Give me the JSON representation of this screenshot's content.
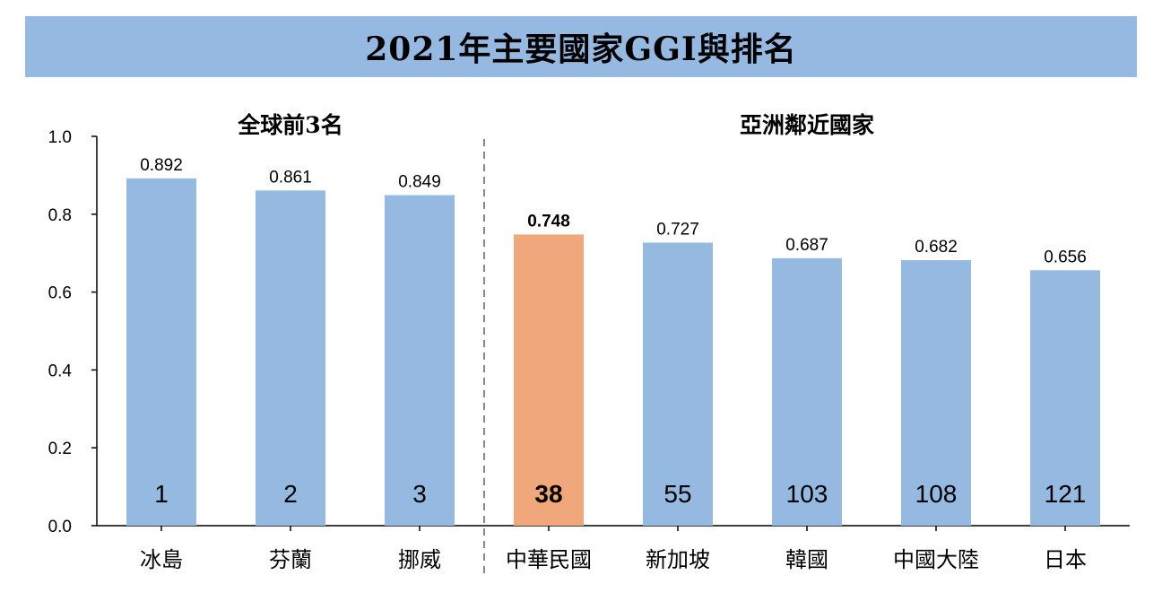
{
  "page": {
    "title": "2021年主要國家GGI與排名"
  },
  "chart_data": {
    "type": "bar",
    "title": "2021年主要國家GGI與排名",
    "ylim": [
      0,
      1.0
    ],
    "yticks": [
      "0.0",
      "0.2",
      "0.4",
      "0.6",
      "0.8",
      "1.0"
    ],
    "ytick_values": [
      0,
      0.2,
      0.4,
      0.6,
      0.8,
      1.0
    ],
    "grid": false,
    "groups": [
      {
        "label": "全球前3名",
        "start": 0,
        "end": 2
      },
      {
        "label": "亞洲鄰近國家",
        "start": 3,
        "end": 7
      }
    ],
    "categories": [
      "冰島",
      "芬蘭",
      "挪威",
      "中華民國",
      "新加坡",
      "韓國",
      "中國大陸",
      "日本"
    ],
    "values": [
      0.892,
      0.861,
      0.849,
      0.748,
      0.727,
      0.687,
      0.682,
      0.656
    ],
    "value_labels": [
      "0.892",
      "0.861",
      "0.849",
      "0.748",
      "0.727",
      "0.687",
      "0.682",
      "0.656"
    ],
    "ranks": [
      "1",
      "2",
      "3",
      "38",
      "55",
      "103",
      "108",
      "121"
    ],
    "highlight_index": 3,
    "colors": {
      "bar": "#95b9e1",
      "highlight": "#f0a77b",
      "axis": "#000000",
      "divider": "#888888"
    }
  }
}
